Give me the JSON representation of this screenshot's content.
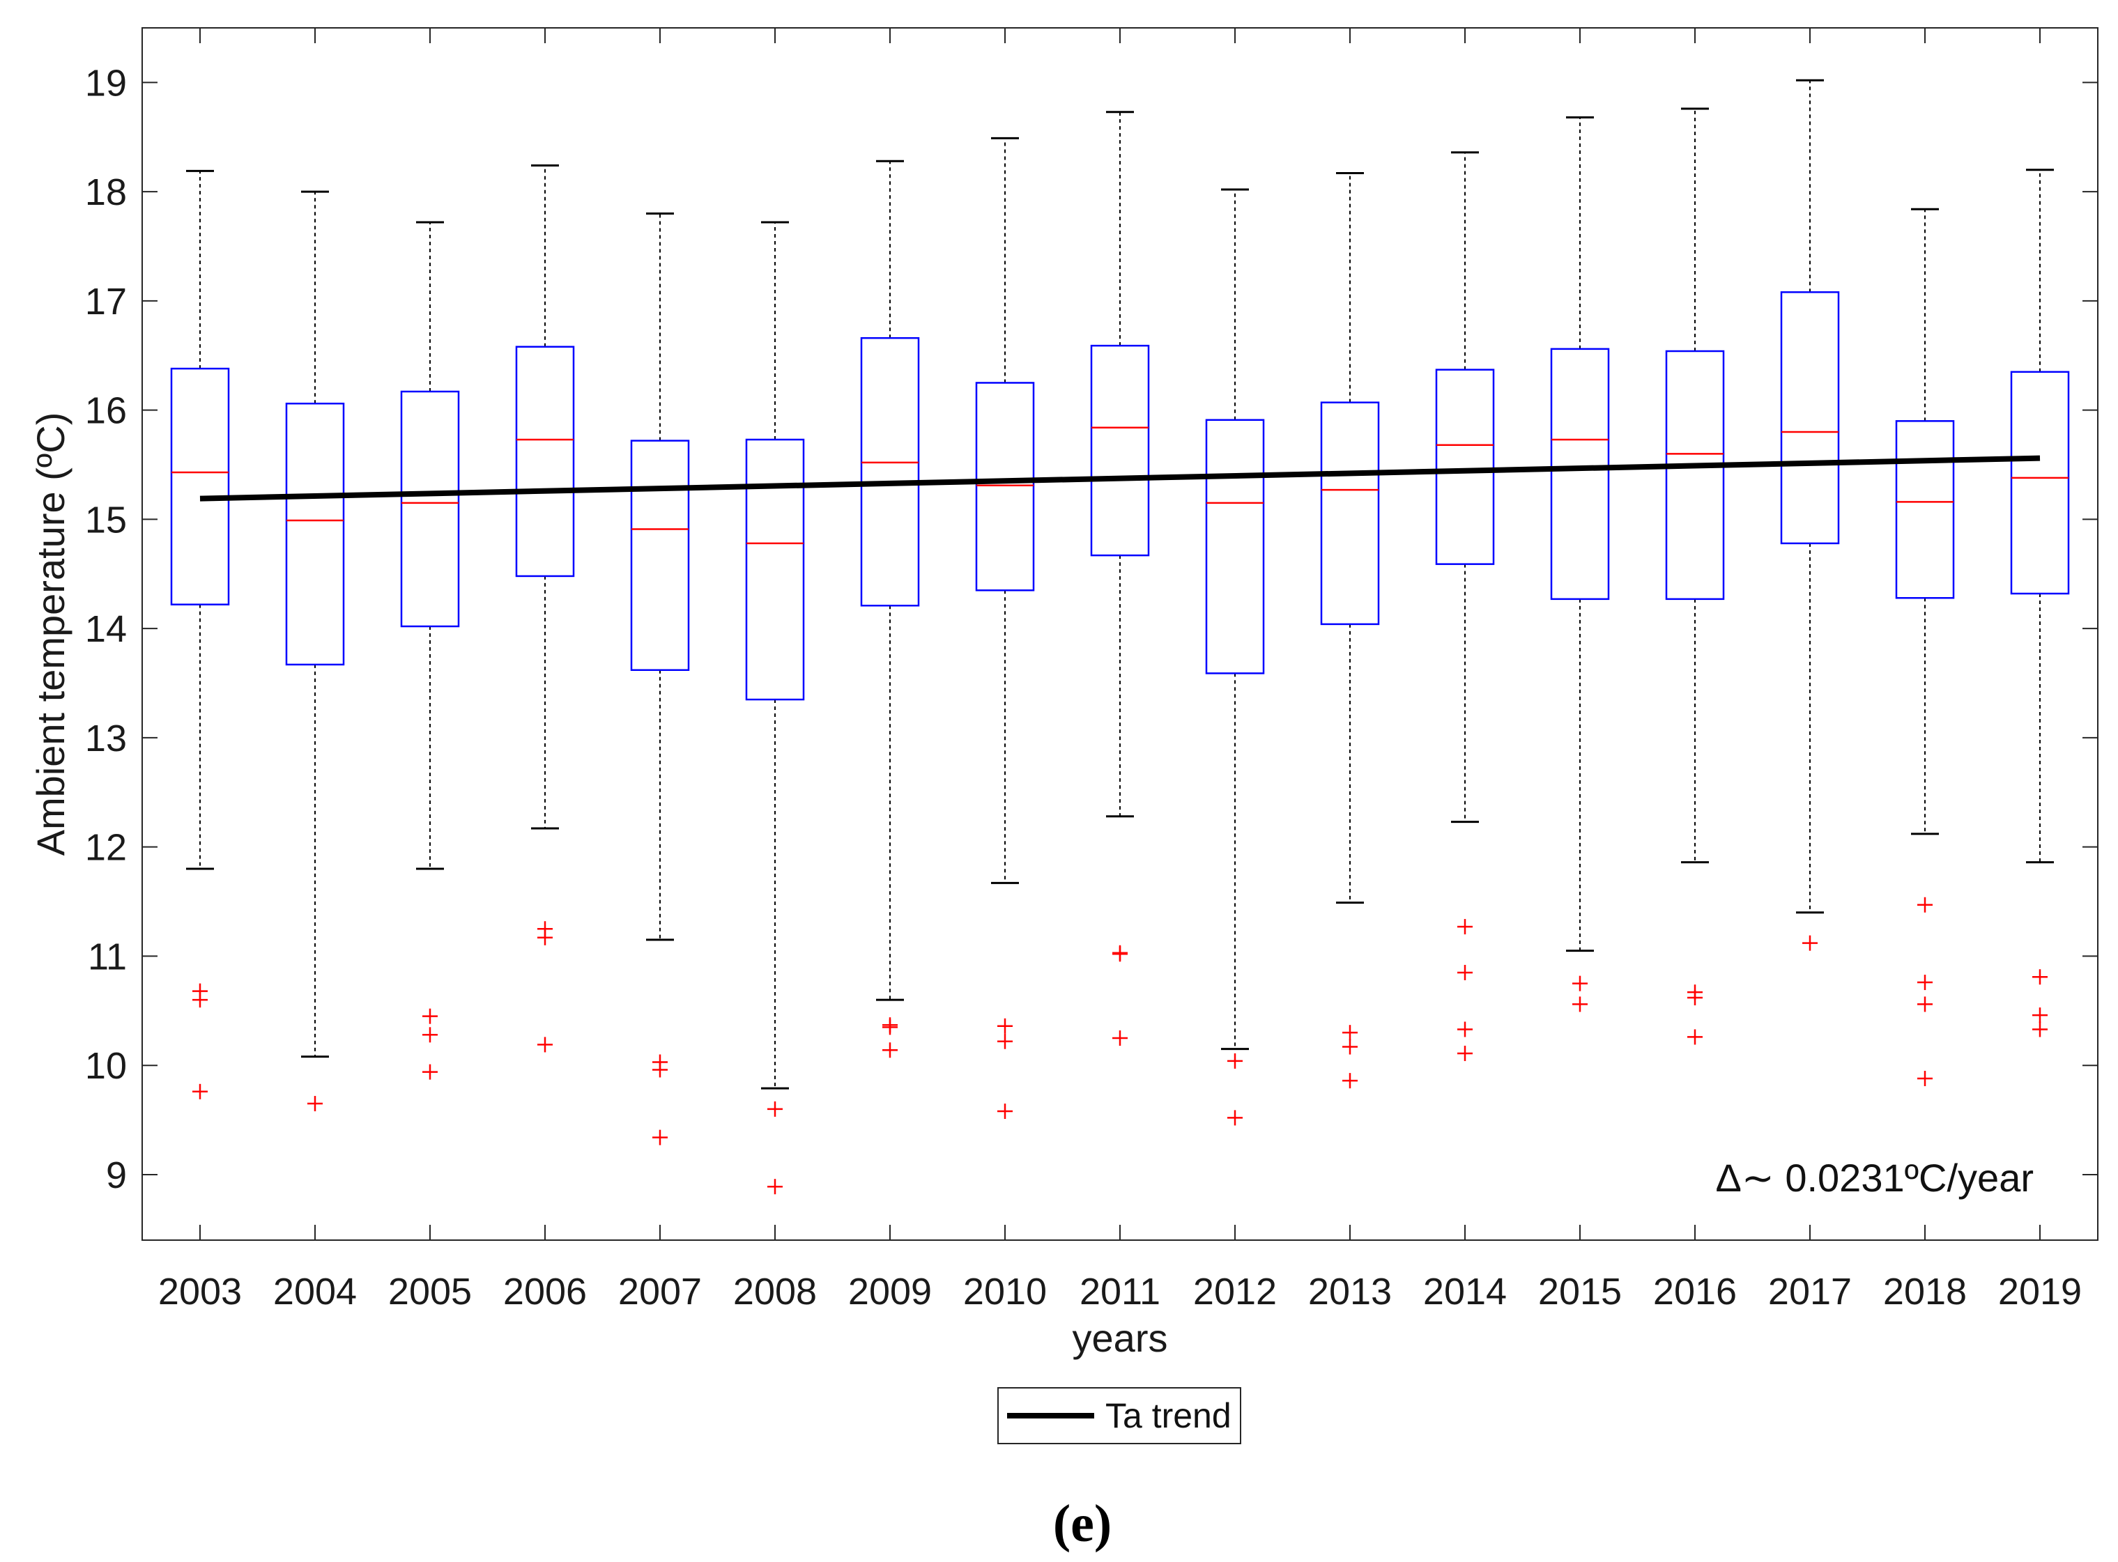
{
  "panel_label": "(e)",
  "chart_data": {
    "type": "boxplot",
    "title": "",
    "xlabel": "years",
    "ylabel": "Ambient temperature (ºC)",
    "ylim": [
      8.4,
      19.5
    ],
    "yticks": [
      9,
      10,
      11,
      12,
      13,
      14,
      15,
      16,
      17,
      18,
      19
    ],
    "categories": [
      "2003",
      "2004",
      "2005",
      "2006",
      "2007",
      "2008",
      "2009",
      "2010",
      "2011",
      "2012",
      "2013",
      "2014",
      "2015",
      "2016",
      "2017",
      "2018",
      "2019"
    ],
    "boxes": [
      {
        "year": "2003",
        "whisker_low": 11.8,
        "q1": 14.22,
        "median": 15.43,
        "q3": 16.38,
        "whisker_high": 18.19,
        "outliers": [
          10.68,
          10.6,
          9.76
        ]
      },
      {
        "year": "2004",
        "whisker_low": 10.08,
        "q1": 13.67,
        "median": 14.99,
        "q3": 16.06,
        "whisker_high": 18.0,
        "outliers": [
          9.65
        ]
      },
      {
        "year": "2005",
        "whisker_low": 11.8,
        "q1": 14.02,
        "median": 15.15,
        "q3": 16.17,
        "whisker_high": 17.72,
        "outliers": [
          10.45,
          10.28,
          9.94
        ]
      },
      {
        "year": "2006",
        "whisker_low": 12.17,
        "q1": 14.48,
        "median": 15.73,
        "q3": 16.58,
        "whisker_high": 18.24,
        "outliers": [
          11.25,
          11.17,
          10.19
        ]
      },
      {
        "year": "2007",
        "whisker_low": 11.15,
        "q1": 13.62,
        "median": 14.91,
        "q3": 15.72,
        "whisker_high": 17.8,
        "outliers": [
          10.03,
          9.96,
          9.34
        ]
      },
      {
        "year": "2008",
        "whisker_low": 9.79,
        "q1": 13.35,
        "median": 14.78,
        "q3": 15.73,
        "whisker_high": 17.72,
        "outliers": [
          9.6,
          8.89
        ]
      },
      {
        "year": "2009",
        "whisker_low": 10.6,
        "q1": 14.21,
        "median": 15.52,
        "q3": 16.66,
        "whisker_high": 18.28,
        "outliers": [
          10.37,
          10.35,
          10.14
        ]
      },
      {
        "year": "2010",
        "whisker_low": 11.67,
        "q1": 14.35,
        "median": 15.31,
        "q3": 16.25,
        "whisker_high": 18.49,
        "outliers": [
          10.36,
          10.22,
          9.58
        ]
      },
      {
        "year": "2011",
        "whisker_low": 12.28,
        "q1": 14.67,
        "median": 15.84,
        "q3": 16.59,
        "whisker_high": 18.73,
        "outliers": [
          11.03,
          11.02,
          10.25
        ]
      },
      {
        "year": "2012",
        "whisker_low": 10.15,
        "q1": 13.59,
        "median": 15.15,
        "q3": 15.91,
        "whisker_high": 18.02,
        "outliers": [
          10.04,
          9.52
        ]
      },
      {
        "year": "2013",
        "whisker_low": 11.49,
        "q1": 14.04,
        "median": 15.27,
        "q3": 16.07,
        "whisker_high": 18.17,
        "outliers": [
          10.3,
          10.17,
          9.86
        ]
      },
      {
        "year": "2014",
        "whisker_low": 12.23,
        "q1": 14.59,
        "median": 15.68,
        "q3": 16.37,
        "whisker_high": 18.36,
        "outliers": [
          11.27,
          10.85,
          10.33,
          10.11
        ]
      },
      {
        "year": "2015",
        "whisker_low": 11.05,
        "q1": 14.27,
        "median": 15.73,
        "q3": 16.56,
        "whisker_high": 18.68,
        "outliers": [
          10.75,
          10.56
        ]
      },
      {
        "year": "2016",
        "whisker_low": 11.86,
        "q1": 14.27,
        "median": 15.6,
        "q3": 16.54,
        "whisker_high": 18.76,
        "outliers": [
          10.67,
          10.62,
          10.26
        ]
      },
      {
        "year": "2017",
        "whisker_low": 11.4,
        "q1": 14.78,
        "median": 15.8,
        "q3": 17.08,
        "whisker_high": 19.02,
        "outliers": [
          11.12
        ]
      },
      {
        "year": "2018",
        "whisker_low": 12.12,
        "q1": 14.28,
        "median": 15.16,
        "q3": 15.9,
        "whisker_high": 17.84,
        "outliers": [
          11.47,
          10.76,
          10.56,
          9.88
        ]
      },
      {
        "year": "2019",
        "whisker_low": 11.86,
        "q1": 14.32,
        "median": 15.38,
        "q3": 16.35,
        "whisker_high": 18.2,
        "outliers": [
          10.81,
          10.46,
          10.33
        ]
      }
    ],
    "trend": {
      "name": "Ta trend",
      "x": [
        "2003",
        "2019"
      ],
      "y": [
        15.19,
        15.56
      ],
      "color": "#000000"
    },
    "annotation": "Δ∼ 0.0231ºC/year",
    "legend": {
      "entries": [
        "Ta trend"
      ],
      "position": "bottom-center"
    },
    "colors": {
      "box": "#0000ff",
      "median": "#ff0000",
      "whisker": "#000000",
      "outlier": "#ff0000",
      "trend": "#000000",
      "axis": "#262626"
    },
    "grid": false
  }
}
